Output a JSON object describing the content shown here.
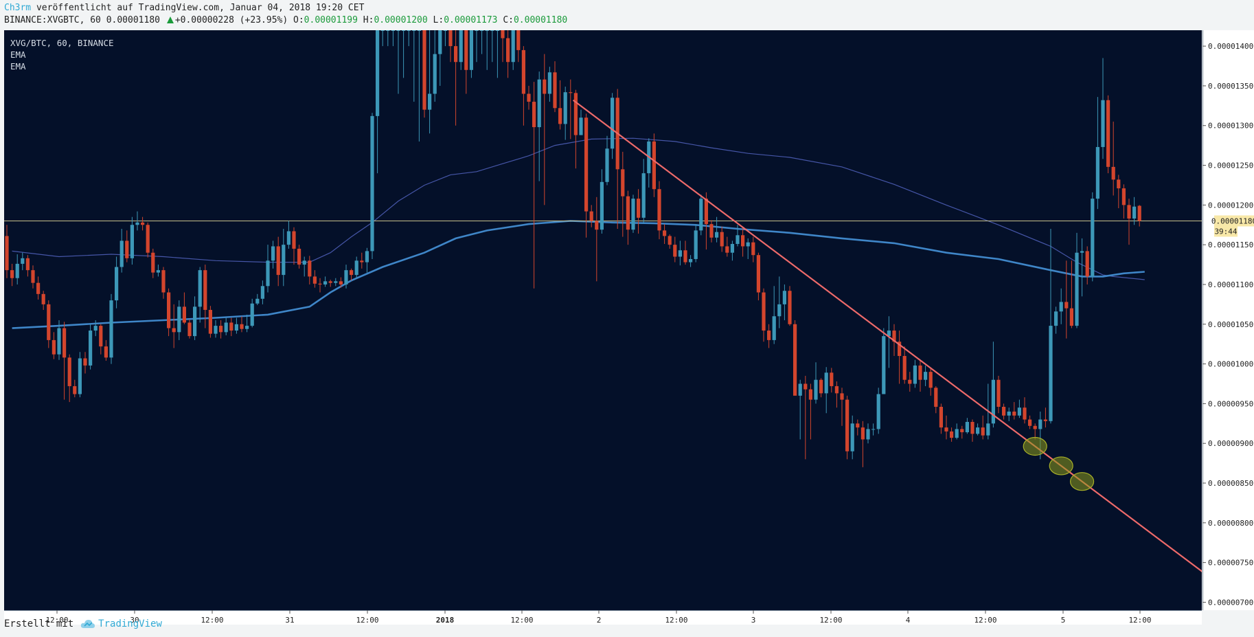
{
  "header": {
    "author": "Ch3rm",
    "published_text": " veröffentlicht auf TradingView.com, Januar 04, 2018 19:20 CET",
    "symbol_line": "BINANCE:XVGBTC, 60 0.00001180",
    "change": "+0.00000228 (+23.95%)",
    "o_label": "O:",
    "o_value": "0.00001199",
    "h_label": "H:",
    "h_value": "0.00001200",
    "l_label": "L:",
    "l_value": "0.00001173",
    "c_label": "C:",
    "c_value": "0.00001180"
  },
  "legend": [
    "XVG/BTC, 60, BINANCE",
    "EMA",
    "EMA"
  ],
  "price_badge": "0.00001180",
  "countdown_badge": "39:44",
  "footer": {
    "label": "Erstellt mit",
    "brand": "TradingView"
  },
  "colors": {
    "background": "#041029",
    "up": "#3d98b8",
    "down": "#d3452d",
    "ema_fast": "#4656a8",
    "ema_slow": "#3f86c8",
    "trendline": "#ee6a6a",
    "price_line": "#c8c08a",
    "badge": "#f8e8a8",
    "highlight": "#8e9a1c"
  },
  "chart_data": {
    "type": "candlestick",
    "timeframe": "60",
    "symbol": "XVG/BTC",
    "exchange": "BINANCE",
    "y_ticks": [
      "0.00000700",
      "0.00000750",
      "0.00000800",
      "0.00000850",
      "0.00000900",
      "0.00000950",
      "0.00001000",
      "0.00001050",
      "0.00001100",
      "0.00001150",
      "0.00001200",
      "0.00001250",
      "0.00001300",
      "0.00001350",
      "0.00001400"
    ],
    "x_ticks": [
      "12:00",
      "30",
      "12:00",
      "31",
      "12:00",
      "2018",
      "12:00",
      "2",
      "12:00",
      "3",
      "12:00",
      "4",
      "12:00",
      "5",
      "12:00"
    ],
    "y_range": [
      6.9e-06,
      1.42e-05
    ],
    "current_price": 1.18e-05,
    "candles": [
      [
        1161,
        1118,
        1175,
        1108
      ],
      [
        1118,
        1108,
        1126,
        1098
      ],
      [
        1108,
        1126,
        1138,
        1100
      ],
      [
        1126,
        1133,
        1140,
        1118
      ],
      [
        1133,
        1118,
        1137,
        1110
      ],
      [
        1118,
        1102,
        1124,
        1095
      ],
      [
        1102,
        1088,
        1110,
        1081
      ],
      [
        1088,
        1075,
        1092,
        1068
      ],
      [
        1075,
        1030,
        1080,
        1020
      ],
      [
        1030,
        1012,
        1040,
        1006
      ],
      [
        1012,
        1045,
        1055,
        1005
      ],
      [
        1045,
        1008,
        1053,
        955
      ],
      [
        1008,
        972,
        1012,
        952
      ],
      [
        972,
        962,
        980,
        958
      ],
      [
        962,
        1007,
        1015,
        958
      ],
      [
        1007,
        998,
        1015,
        988
      ],
      [
        998,
        1042,
        1050,
        993
      ],
      [
        1042,
        1048,
        1055,
        1035
      ],
      [
        1048,
        1022,
        1050,
        1012
      ],
      [
        1022,
        1008,
        1030,
        1004
      ],
      [
        1008,
        1080,
        1088,
        1000
      ],
      [
        1080,
        1122,
        1135,
        1070
      ],
      [
        1122,
        1155,
        1170,
        1115
      ],
      [
        1155,
        1133,
        1168,
        1128
      ],
      [
        1133,
        1175,
        1185,
        1125
      ],
      [
        1175,
        1178,
        1192,
        1168
      ],
      [
        1178,
        1175,
        1185,
        1168
      ],
      [
        1175,
        1140,
        1178,
        1134
      ],
      [
        1140,
        1115,
        1145,
        1108
      ],
      [
        1115,
        1118,
        1125,
        1110
      ],
      [
        1118,
        1090,
        1122,
        1082
      ],
      [
        1090,
        1045,
        1095,
        1035
      ],
      [
        1045,
        1040,
        1075,
        1020
      ],
      [
        1040,
        1072,
        1080,
        1030
      ],
      [
        1072,
        1052,
        1090,
        1050
      ],
      [
        1052,
        1035,
        1056,
        1032
      ],
      [
        1035,
        1072,
        1085,
        1030
      ],
      [
        1072,
        1118,
        1122,
        1052
      ],
      [
        1118,
        1068,
        1125,
        1045
      ],
      [
        1068,
        1038,
        1073,
        1033
      ],
      [
        1038,
        1048,
        1055,
        1033
      ],
      [
        1048,
        1040,
        1055,
        1032
      ],
      [
        1040,
        1052,
        1058,
        1036
      ],
      [
        1052,
        1042,
        1058,
        1035
      ],
      [
        1042,
        1050,
        1058,
        1038
      ],
      [
        1050,
        1044,
        1060,
        1040
      ],
      [
        1044,
        1048,
        1062,
        1040
      ],
      [
        1048,
        1076,
        1082,
        1046
      ],
      [
        1076,
        1082,
        1088,
        1074
      ],
      [
        1082,
        1098,
        1105,
        1075
      ],
      [
        1098,
        1130,
        1150,
        1090
      ],
      [
        1130,
        1148,
        1155,
        1120
      ],
      [
        1148,
        1112,
        1160,
        1098
      ],
      [
        1112,
        1150,
        1170,
        1098
      ],
      [
        1150,
        1167,
        1180,
        1145
      ],
      [
        1167,
        1145,
        1172,
        1125
      ],
      [
        1145,
        1125,
        1150,
        1120
      ],
      [
        1125,
        1130,
        1135,
        1110
      ],
      [
        1130,
        1110,
        1136,
        1100
      ],
      [
        1110,
        1101,
        1118,
        1096
      ],
      [
        1101,
        1100,
        1108,
        1090
      ],
      [
        1100,
        1104,
        1110,
        1097
      ],
      [
        1104,
        1102,
        1106,
        1097
      ],
      [
        1102,
        1104,
        1108,
        1098
      ],
      [
        1104,
        1100,
        1109,
        1096
      ],
      [
        1100,
        1118,
        1125,
        1095
      ],
      [
        1118,
        1112,
        1120,
        1105
      ],
      [
        1112,
        1130,
        1135,
        1108
      ],
      [
        1130,
        1128,
        1140,
        1120
      ],
      [
        1128,
        1142,
        1146,
        1115
      ],
      [
        1142,
        1312,
        1316,
        1132
      ],
      [
        1312,
        1420,
        1420,
        1240
      ],
      [
        1420,
        1420,
        1420,
        1400
      ],
      [
        1420,
        1420,
        1420,
        1400
      ],
      [
        1420,
        1420,
        1420,
        1400
      ],
      [
        1420,
        1420,
        1420,
        1340
      ],
      [
        1420,
        1420,
        1420,
        1360
      ],
      [
        1420,
        1420,
        1420,
        1400
      ],
      [
        1420,
        1420,
        1420,
        1330
      ],
      [
        1420,
        1420,
        1420,
        1280
      ],
      [
        1420,
        1320,
        1420,
        1310
      ],
      [
        1320,
        1340,
        1420,
        1290
      ],
      [
        1340,
        1390,
        1420,
        1330
      ],
      [
        1390,
        1420,
        1420,
        1350
      ],
      [
        1420,
        1420,
        1420,
        1400
      ],
      [
        1420,
        1400,
        1420,
        1380
      ],
      [
        1400,
        1380,
        1420,
        1300
      ],
      [
        1380,
        1420,
        1420,
        1370
      ],
      [
        1420,
        1370,
        1420,
        1340
      ],
      [
        1370,
        1420,
        1420,
        1360
      ],
      [
        1420,
        1420,
        1420,
        1380
      ],
      [
        1420,
        1420,
        1420,
        1390
      ],
      [
        1420,
        1420,
        1420,
        1370
      ],
      [
        1420,
        1420,
        1420,
        1380
      ],
      [
        1420,
        1420,
        1420,
        1360
      ],
      [
        1420,
        1410,
        1420,
        1380
      ],
      [
        1410,
        1380,
        1420,
        1360
      ],
      [
        1380,
        1420,
        1420,
        1370
      ],
      [
        1420,
        1395,
        1420,
        1380
      ],
      [
        1395,
        1340,
        1400,
        1300
      ],
      [
        1340,
        1330,
        1350,
        1320
      ],
      [
        1330,
        1298,
        1355,
        1095
      ],
      [
        1298,
        1358,
        1368,
        1230
      ],
      [
        1358,
        1340,
        1390,
        1200
      ],
      [
        1340,
        1367,
        1374,
        1330
      ],
      [
        1367,
        1322,
        1381,
        1317
      ],
      [
        1322,
        1302,
        1357,
        1295
      ],
      [
        1302,
        1342,
        1349,
        1282
      ],
      [
        1342,
        1341,
        1358,
        1283
      ],
      [
        1341,
        1288,
        1345,
        1246
      ],
      [
        1288,
        1310,
        1320,
        1305
      ],
      [
        1310,
        1192,
        1315,
        1159
      ],
      [
        1192,
        1180,
        1200,
        1172
      ],
      [
        1180,
        1169,
        1210,
        1104
      ],
      [
        1169,
        1229,
        1245,
        1164
      ],
      [
        1229,
        1271,
        1287,
        1225
      ],
      [
        1271,
        1335,
        1341,
        1258
      ],
      [
        1335,
        1245,
        1346,
        1170
      ],
      [
        1245,
        1211,
        1267,
        1160
      ],
      [
        1211,
        1169,
        1218,
        1150
      ],
      [
        1169,
        1208,
        1213,
        1165
      ],
      [
        1208,
        1184,
        1220,
        1164
      ],
      [
        1184,
        1240,
        1258,
        1177
      ],
      [
        1240,
        1280,
        1284,
        1222
      ],
      [
        1280,
        1220,
        1290,
        1210
      ],
      [
        1220,
        1168,
        1230,
        1157
      ],
      [
        1168,
        1161,
        1176,
        1151
      ],
      [
        1161,
        1150,
        1163,
        1145
      ],
      [
        1150,
        1135,
        1160,
        1128
      ],
      [
        1135,
        1143,
        1155,
        1124
      ],
      [
        1143,
        1128,
        1155,
        1125
      ],
      [
        1128,
        1132,
        1137,
        1122
      ],
      [
        1132,
        1168,
        1176,
        1128
      ],
      [
        1168,
        1208,
        1213,
        1162
      ],
      [
        1208,
        1176,
        1216,
        1144
      ],
      [
        1176,
        1159,
        1181,
        1153
      ],
      [
        1159,
        1166,
        1185,
        1153
      ],
      [
        1166,
        1148,
        1173,
        1141
      ],
      [
        1148,
        1140,
        1160,
        1135
      ],
      [
        1140,
        1151,
        1155,
        1130
      ],
      [
        1151,
        1162,
        1175,
        1148
      ],
      [
        1162,
        1148,
        1172,
        1135
      ],
      [
        1148,
        1153,
        1158,
        1132
      ],
      [
        1153,
        1137,
        1160,
        1128
      ],
      [
        1137,
        1090,
        1140,
        1080
      ],
      [
        1090,
        1042,
        1095,
        1028
      ],
      [
        1042,
        1030,
        1050,
        1020
      ],
      [
        1030,
        1060,
        1098,
        1025
      ],
      [
        1060,
        1075,
        1110,
        1045
      ],
      [
        1075,
        1092,
        1100,
        1055
      ],
      [
        1092,
        1050,
        1098,
        1048
      ],
      [
        1050,
        960,
        1055,
        975
      ],
      [
        960,
        975,
        980,
        905
      ],
      [
        975,
        968,
        985,
        880
      ],
      [
        968,
        955,
        975,
        905
      ],
      [
        955,
        980,
        1002,
        950
      ],
      [
        980,
        963,
        982,
        958
      ],
      [
        963,
        989,
        996,
        938
      ],
      [
        989,
        972,
        995,
        964
      ],
      [
        972,
        963,
        978,
        945
      ],
      [
        963,
        955,
        970,
        922
      ],
      [
        955,
        890,
        960,
        880
      ],
      [
        890,
        925,
        935,
        880
      ],
      [
        925,
        920,
        930,
        910
      ],
      [
        920,
        905,
        928,
        870
      ],
      [
        905,
        918,
        925,
        900
      ],
      [
        918,
        918,
        925,
        910
      ],
      [
        918,
        962,
        970,
        912
      ],
      [
        962,
        1035,
        1045,
        985
      ],
      [
        1035,
        1042,
        1060,
        995
      ],
      [
        1042,
        1028,
        1050,
        1010
      ],
      [
        1028,
        1010,
        1042,
        975
      ],
      [
        1010,
        980,
        1022,
        975
      ],
      [
        980,
        975,
        990,
        965
      ],
      [
        975,
        998,
        1005,
        970
      ],
      [
        998,
        980,
        1005,
        965
      ],
      [
        980,
        990,
        998,
        972
      ],
      [
        990,
        970,
        995,
        960
      ],
      [
        970,
        946,
        972,
        938
      ],
      [
        946,
        920,
        950,
        912
      ],
      [
        920,
        915,
        935,
        905
      ],
      [
        915,
        907,
        920,
        902
      ],
      [
        907,
        918,
        925,
        905
      ],
      [
        918,
        914,
        922,
        906
      ],
      [
        914,
        927,
        932,
        912
      ],
      [
        927,
        912,
        930,
        902
      ],
      [
        912,
        920,
        925,
        910
      ],
      [
        920,
        910,
        935,
        905
      ],
      [
        910,
        925,
        975,
        905
      ],
      [
        925,
        980,
        1028,
        920
      ],
      [
        980,
        946,
        985,
        938
      ],
      [
        946,
        935,
        950,
        930
      ],
      [
        935,
        940,
        945,
        928
      ],
      [
        940,
        935,
        952,
        930
      ],
      [
        935,
        945,
        955,
        932
      ],
      [
        945,
        930,
        958,
        925
      ],
      [
        930,
        922,
        935,
        918
      ],
      [
        922,
        918,
        925,
        905
      ],
      [
        918,
        930,
        940,
        880
      ],
      [
        930,
        928,
        945,
        920
      ],
      [
        928,
        1048,
        1170,
        925
      ],
      [
        1048,
        1066,
        1072,
        1038
      ],
      [
        1066,
        1078,
        1095,
        1050
      ],
      [
        1078,
        1070,
        1130,
        1032
      ],
      [
        1070,
        1048,
        1130,
        1045
      ],
      [
        1048,
        1140,
        1165,
        1045
      ],
      [
        1140,
        1142,
        1158,
        1085
      ],
      [
        1142,
        1110,
        1148,
        1100
      ],
      [
        1110,
        1208,
        1216,
        1104
      ],
      [
        1208,
        1273,
        1336,
        1195
      ],
      [
        1273,
        1332,
        1385,
        1258
      ],
      [
        1332,
        1248,
        1338,
        1240
      ],
      [
        1248,
        1232,
        1305,
        1212
      ],
      [
        1232,
        1221,
        1238,
        1196
      ],
      [
        1221,
        1200,
        1226,
        1183
      ],
      [
        1200,
        1183,
        1208,
        1150
      ],
      [
        1183,
        1198,
        1210,
        1175
      ],
      [
        1199,
        1180,
        1200,
        1173
      ]
    ],
    "ema_fast": [
      [
        1,
        1142
      ],
      [
        10,
        1135
      ],
      [
        20,
        1138
      ],
      [
        30,
        1135
      ],
      [
        40,
        1130
      ],
      [
        50,
        1128
      ],
      [
        58,
        1128
      ],
      [
        62,
        1140
      ],
      [
        66,
        1160
      ],
      [
        70,
        1178
      ],
      [
        75,
        1205
      ],
      [
        80,
        1225
      ],
      [
        85,
        1238
      ],
      [
        90,
        1242
      ],
      [
        95,
        1252
      ],
      [
        100,
        1262
      ],
      [
        105,
        1275
      ],
      [
        112,
        1283
      ],
      [
        120,
        1284
      ],
      [
        128,
        1280
      ],
      [
        135,
        1272
      ],
      [
        142,
        1265
      ],
      [
        150,
        1260
      ],
      [
        160,
        1248
      ],
      [
        170,
        1226
      ],
      [
        180,
        1200
      ],
      [
        190,
        1175
      ],
      [
        200,
        1148
      ],
      [
        205,
        1128
      ],
      [
        210,
        1112
      ],
      [
        212,
        1110
      ],
      [
        218,
        1106
      ]
    ],
    "ema_slow": [
      [
        1,
        1045
      ],
      [
        10,
        1048
      ],
      [
        20,
        1052
      ],
      [
        30,
        1055
      ],
      [
        40,
        1058
      ],
      [
        50,
        1062
      ],
      [
        58,
        1072
      ],
      [
        62,
        1090
      ],
      [
        66,
        1105
      ],
      [
        72,
        1122
      ],
      [
        80,
        1140
      ],
      [
        86,
        1158
      ],
      [
        92,
        1168
      ],
      [
        100,
        1176
      ],
      [
        108,
        1180
      ],
      [
        116,
        1178
      ],
      [
        124,
        1177
      ],
      [
        132,
        1175
      ],
      [
        140,
        1170
      ],
      [
        150,
        1165
      ],
      [
        160,
        1158
      ],
      [
        170,
        1152
      ],
      [
        180,
        1140
      ],
      [
        190,
        1132
      ],
      [
        200,
        1118
      ],
      [
        206,
        1110
      ],
      [
        210,
        1110
      ],
      [
        214,
        1114
      ],
      [
        218,
        1116
      ]
    ],
    "trendline": {
      "from_bar": 108.5,
      "from_price": 1332,
      "to_bar": 238.5,
      "to_price": 692
    },
    "highlight_bars": [
      197,
      202,
      206
    ]
  }
}
